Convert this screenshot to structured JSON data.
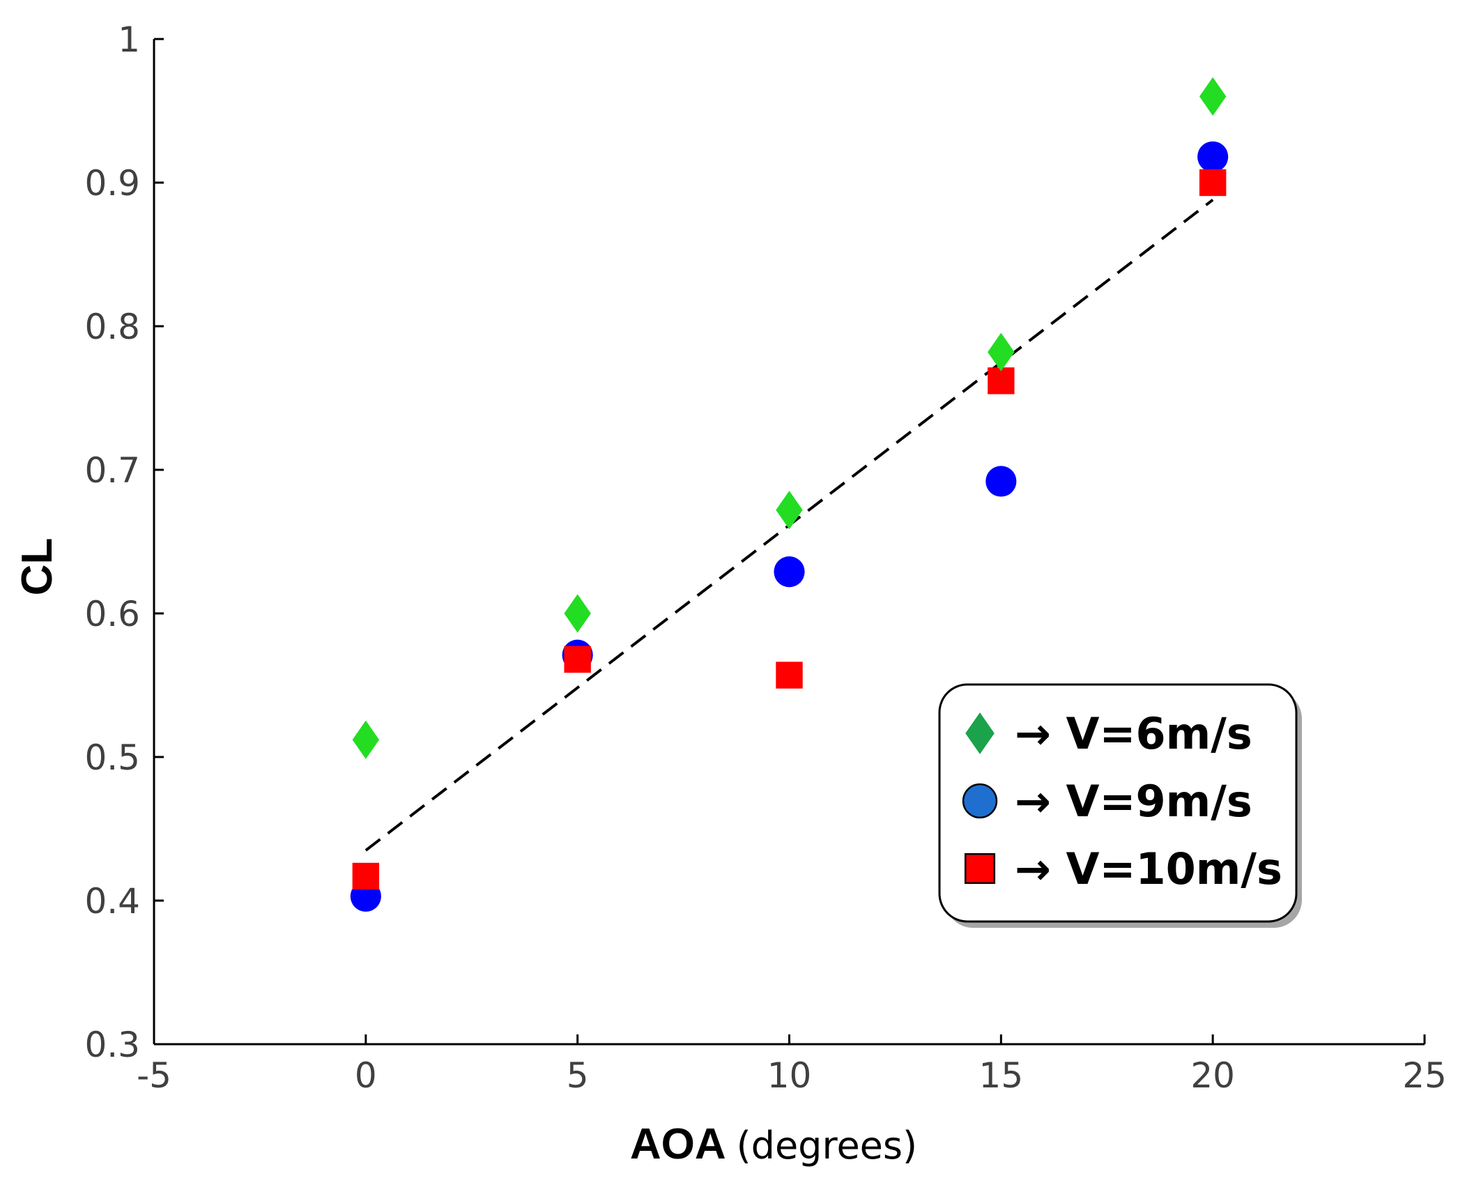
{
  "chart_data": {
    "type": "scatter",
    "title": "",
    "xlabel": "AOA",
    "xlabel_unit": "(degrees)",
    "ylabel": "CL",
    "xlim": [
      -5,
      25
    ],
    "ylim": [
      0.3,
      1.0
    ],
    "xticks": [
      -5,
      0,
      5,
      10,
      15,
      20,
      25
    ],
    "xtick_labels": [
      "-5",
      "0",
      "5",
      "10",
      "15",
      "20",
      "25"
    ],
    "yticks": [
      0.3,
      0.4,
      0.5,
      0.6,
      0.7,
      0.8,
      0.9,
      1.0
    ],
    "ytick_labels": [
      "0.3",
      "0.4",
      "0.5",
      "0.6",
      "0.7",
      "0.8",
      "0.9",
      "1"
    ],
    "grid": false,
    "legend_position": "lower-right",
    "series": [
      {
        "name": "V=6m/s",
        "legend_label": "→ V=6m/s",
        "marker": "diamond",
        "color": "#22dd22",
        "legend_color": "#1aa34a",
        "x": [
          0,
          5,
          10,
          15,
          20
        ],
        "y": [
          0.512,
          0.6,
          0.672,
          0.782,
          0.96
        ]
      },
      {
        "name": "V=9m/s",
        "legend_label": "→ V=9m/s",
        "marker": "circle",
        "color": "#0000ff",
        "legend_color": "#1f6fd0",
        "x": [
          0,
          5,
          10,
          15,
          20
        ],
        "y": [
          0.403,
          0.571,
          0.629,
          0.692,
          0.918
        ]
      },
      {
        "name": "V=10m/s",
        "legend_label": "→ V=10m/s",
        "marker": "square",
        "color": "#ff0000",
        "legend_color": "#ff0000",
        "x": [
          0,
          5,
          10,
          15,
          20
        ],
        "y": [
          0.417,
          0.568,
          0.557,
          0.762,
          0.9
        ]
      }
    ],
    "trendline": {
      "style": "dashed",
      "color": "#000000",
      "x": [
        0,
        20
      ],
      "y": [
        0.435,
        0.888
      ]
    }
  }
}
